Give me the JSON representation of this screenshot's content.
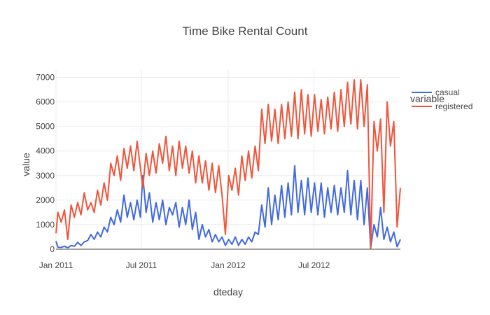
{
  "chart_data": {
    "type": "line",
    "title": "Time Bike Rental Count",
    "xlabel": "dteday",
    "ylabel": "value",
    "xlim": [
      "2011-01-01",
      "2012-12-31"
    ],
    "ylim": [
      0,
      7300
    ],
    "x_ticks": [
      {
        "date": "2011-01-01",
        "label": "Jan 2011"
      },
      {
        "date": "2011-07-01",
        "label": "Jul 2011"
      },
      {
        "date": "2012-01-01",
        "label": "Jan 2012"
      },
      {
        "date": "2012-07-01",
        "label": "Jul 2012"
      }
    ],
    "y_ticks": [
      {
        "value": 0,
        "label": "0"
      },
      {
        "value": 1000,
        "label": "1000"
      },
      {
        "value": 2000,
        "label": "2000"
      },
      {
        "value": 3000,
        "label": "3000"
      },
      {
        "value": 4000,
        "label": "4000"
      },
      {
        "value": 5000,
        "label": "5000"
      },
      {
        "value": 6000,
        "label": "6000"
      },
      {
        "value": 7000,
        "label": "7000"
      }
    ],
    "grid": true,
    "legend": {
      "title": "variable",
      "position": "top-right"
    },
    "series": [
      {
        "name": "casual",
        "color": "#4169e1",
        "points": [
          {
            "x": "2011-01-01",
            "y": 330
          },
          {
            "x": "2011-01-05",
            "y": 80
          },
          {
            "x": "2011-01-12",
            "y": 70
          },
          {
            "x": "2011-01-19",
            "y": 120
          },
          {
            "x": "2011-01-26",
            "y": 60
          },
          {
            "x": "2011-02-02",
            "y": 150
          },
          {
            "x": "2011-02-09",
            "y": 120
          },
          {
            "x": "2011-02-16",
            "y": 280
          },
          {
            "x": "2011-02-23",
            "y": 150
          },
          {
            "x": "2011-03-02",
            "y": 300
          },
          {
            "x": "2011-03-09",
            "y": 350
          },
          {
            "x": "2011-03-16",
            "y": 600
          },
          {
            "x": "2011-03-23",
            "y": 400
          },
          {
            "x": "2011-03-30",
            "y": 700
          },
          {
            "x": "2011-04-06",
            "y": 500
          },
          {
            "x": "2011-04-13",
            "y": 900
          },
          {
            "x": "2011-04-20",
            "y": 700
          },
          {
            "x": "2011-04-27",
            "y": 1300
          },
          {
            "x": "2011-05-04",
            "y": 1000
          },
          {
            "x": "2011-05-11",
            "y": 1600
          },
          {
            "x": "2011-05-18",
            "y": 1100
          },
          {
            "x": "2011-05-25",
            "y": 2200
          },
          {
            "x": "2011-06-01",
            "y": 1300
          },
          {
            "x": "2011-06-08",
            "y": 1900
          },
          {
            "x": "2011-06-15",
            "y": 1200
          },
          {
            "x": "2011-06-22",
            "y": 2000
          },
          {
            "x": "2011-06-29",
            "y": 1300
          },
          {
            "x": "2011-07-04",
            "y": 3000
          },
          {
            "x": "2011-07-11",
            "y": 1500
          },
          {
            "x": "2011-07-18",
            "y": 2300
          },
          {
            "x": "2011-07-25",
            "y": 1100
          },
          {
            "x": "2011-08-01",
            "y": 1900
          },
          {
            "x": "2011-08-08",
            "y": 1200
          },
          {
            "x": "2011-08-15",
            "y": 2000
          },
          {
            "x": "2011-08-22",
            "y": 1000
          },
          {
            "x": "2011-08-29",
            "y": 1700
          },
          {
            "x": "2011-09-05",
            "y": 1400
          },
          {
            "x": "2011-09-12",
            "y": 1900
          },
          {
            "x": "2011-09-19",
            "y": 900
          },
          {
            "x": "2011-09-26",
            "y": 1700
          },
          {
            "x": "2011-10-03",
            "y": 1000
          },
          {
            "x": "2011-10-10",
            "y": 2000
          },
          {
            "x": "2011-10-17",
            "y": 800
          },
          {
            "x": "2011-10-24",
            "y": 1500
          },
          {
            "x": "2011-10-31",
            "y": 400
          },
          {
            "x": "2011-11-07",
            "y": 1000
          },
          {
            "x": "2011-11-14",
            "y": 500
          },
          {
            "x": "2011-11-21",
            "y": 800
          },
          {
            "x": "2011-11-28",
            "y": 300
          },
          {
            "x": "2011-12-05",
            "y": 600
          },
          {
            "x": "2011-12-12",
            "y": 300
          },
          {
            "x": "2011-12-19",
            "y": 500
          },
          {
            "x": "2011-12-26",
            "y": 150
          },
          {
            "x": "2012-01-02",
            "y": 400
          },
          {
            "x": "2012-01-09",
            "y": 200
          },
          {
            "x": "2012-01-16",
            "y": 500
          },
          {
            "x": "2012-01-23",
            "y": 150
          },
          {
            "x": "2012-01-30",
            "y": 400
          },
          {
            "x": "2012-02-06",
            "y": 200
          },
          {
            "x": "2012-02-13",
            "y": 500
          },
          {
            "x": "2012-02-20",
            "y": 300
          },
          {
            "x": "2012-02-27",
            "y": 700
          },
          {
            "x": "2012-03-05",
            "y": 600
          },
          {
            "x": "2012-03-12",
            "y": 1800
          },
          {
            "x": "2012-03-19",
            "y": 900
          },
          {
            "x": "2012-03-26",
            "y": 2500
          },
          {
            "x": "2012-04-02",
            "y": 1000
          },
          {
            "x": "2012-04-09",
            "y": 2200
          },
          {
            "x": "2012-04-16",
            "y": 1200
          },
          {
            "x": "2012-04-23",
            "y": 2600
          },
          {
            "x": "2012-04-30",
            "y": 1300
          },
          {
            "x": "2012-05-07",
            "y": 2700
          },
          {
            "x": "2012-05-14",
            "y": 1400
          },
          {
            "x": "2012-05-21",
            "y": 3400
          },
          {
            "x": "2012-05-28",
            "y": 1500
          },
          {
            "x": "2012-06-04",
            "y": 2800
          },
          {
            "x": "2012-06-11",
            "y": 1400
          },
          {
            "x": "2012-06-18",
            "y": 2900
          },
          {
            "x": "2012-06-25",
            "y": 1500
          },
          {
            "x": "2012-07-02",
            "y": 2700
          },
          {
            "x": "2012-07-09",
            "y": 1400
          },
          {
            "x": "2012-07-16",
            "y": 2700
          },
          {
            "x": "2012-07-23",
            "y": 1300
          },
          {
            "x": "2012-07-30",
            "y": 2500
          },
          {
            "x": "2012-08-06",
            "y": 1500
          },
          {
            "x": "2012-08-13",
            "y": 2600
          },
          {
            "x": "2012-08-20",
            "y": 1400
          },
          {
            "x": "2012-08-27",
            "y": 2500
          },
          {
            "x": "2012-09-03",
            "y": 1500
          },
          {
            "x": "2012-09-10",
            "y": 3200
          },
          {
            "x": "2012-09-17",
            "y": 1400
          },
          {
            "x": "2012-09-24",
            "y": 2800
          },
          {
            "x": "2012-10-01",
            "y": 1200
          },
          {
            "x": "2012-10-08",
            "y": 2800
          },
          {
            "x": "2012-10-15",
            "y": 1000
          },
          {
            "x": "2012-10-22",
            "y": 2500
          },
          {
            "x": "2012-10-29",
            "y": 30
          },
          {
            "x": "2012-11-05",
            "y": 1000
          },
          {
            "x": "2012-11-12",
            "y": 500
          },
          {
            "x": "2012-11-19",
            "y": 1700
          },
          {
            "x": "2012-11-26",
            "y": 400
          },
          {
            "x": "2012-12-03",
            "y": 900
          },
          {
            "x": "2012-12-10",
            "y": 300
          },
          {
            "x": "2012-12-17",
            "y": 700
          },
          {
            "x": "2012-12-24",
            "y": 100
          },
          {
            "x": "2012-12-31",
            "y": 400
          }
        ]
      },
      {
        "name": "registered",
        "color": "#ef553b",
        "points": [
          {
            "x": "2011-01-01",
            "y": 650
          },
          {
            "x": "2011-01-05",
            "y": 1500
          },
          {
            "x": "2011-01-12",
            "y": 1100
          },
          {
            "x": "2011-01-19",
            "y": 1600
          },
          {
            "x": "2011-01-26",
            "y": 400
          },
          {
            "x": "2011-02-02",
            "y": 1800
          },
          {
            "x": "2011-02-09",
            "y": 1300
          },
          {
            "x": "2011-02-16",
            "y": 1900
          },
          {
            "x": "2011-02-23",
            "y": 1400
          },
          {
            "x": "2011-03-02",
            "y": 2300
          },
          {
            "x": "2011-03-09",
            "y": 1600
          },
          {
            "x": "2011-03-16",
            "y": 1900
          },
          {
            "x": "2011-03-23",
            "y": 1500
          },
          {
            "x": "2011-03-30",
            "y": 2400
          },
          {
            "x": "2011-04-06",
            "y": 1800
          },
          {
            "x": "2011-04-13",
            "y": 2700
          },
          {
            "x": "2011-04-20",
            "y": 2000
          },
          {
            "x": "2011-04-27",
            "y": 3500
          },
          {
            "x": "2011-05-04",
            "y": 3000
          },
          {
            "x": "2011-05-11",
            "y": 3800
          },
          {
            "x": "2011-05-18",
            "y": 2800
          },
          {
            "x": "2011-05-25",
            "y": 4100
          },
          {
            "x": "2011-06-01",
            "y": 3300
          },
          {
            "x": "2011-06-08",
            "y": 4200
          },
          {
            "x": "2011-06-15",
            "y": 3200
          },
          {
            "x": "2011-06-22",
            "y": 4400
          },
          {
            "x": "2011-06-29",
            "y": 3300
          },
          {
            "x": "2011-07-04",
            "y": 2500
          },
          {
            "x": "2011-07-11",
            "y": 3900
          },
          {
            "x": "2011-07-18",
            "y": 3000
          },
          {
            "x": "2011-07-25",
            "y": 4000
          },
          {
            "x": "2011-08-01",
            "y": 3100
          },
          {
            "x": "2011-08-08",
            "y": 4300
          },
          {
            "x": "2011-08-15",
            "y": 3500
          },
          {
            "x": "2011-08-22",
            "y": 4600
          },
          {
            "x": "2011-08-29",
            "y": 3200
          },
          {
            "x": "2011-09-05",
            "y": 4200
          },
          {
            "x": "2011-09-12",
            "y": 3000
          },
          {
            "x": "2011-09-19",
            "y": 4400
          },
          {
            "x": "2011-09-26",
            "y": 3300
          },
          {
            "x": "2011-10-03",
            "y": 4200
          },
          {
            "x": "2011-10-10",
            "y": 3100
          },
          {
            "x": "2011-10-17",
            "y": 4000
          },
          {
            "x": "2011-10-24",
            "y": 2700
          },
          {
            "x": "2011-10-31",
            "y": 3800
          },
          {
            "x": "2011-11-07",
            "y": 2700
          },
          {
            "x": "2011-11-14",
            "y": 3600
          },
          {
            "x": "2011-11-21",
            "y": 2400
          },
          {
            "x": "2011-11-28",
            "y": 3500
          },
          {
            "x": "2011-12-05",
            "y": 2300
          },
          {
            "x": "2011-12-12",
            "y": 3400
          },
          {
            "x": "2011-12-19",
            "y": 2200
          },
          {
            "x": "2011-12-26",
            "y": 600
          },
          {
            "x": "2012-01-02",
            "y": 3000
          },
          {
            "x": "2012-01-09",
            "y": 2400
          },
          {
            "x": "2012-01-16",
            "y": 3300
          },
          {
            "x": "2012-01-23",
            "y": 2200
          },
          {
            "x": "2012-01-30",
            "y": 3800
          },
          {
            "x": "2012-02-06",
            "y": 2800
          },
          {
            "x": "2012-02-13",
            "y": 4000
          },
          {
            "x": "2012-02-20",
            "y": 2900
          },
          {
            "x": "2012-02-27",
            "y": 4200
          },
          {
            "x": "2012-03-05",
            "y": 3200
          },
          {
            "x": "2012-03-12",
            "y": 5700
          },
          {
            "x": "2012-03-19",
            "y": 4300
          },
          {
            "x": "2012-03-26",
            "y": 5900
          },
          {
            "x": "2012-04-02",
            "y": 4400
          },
          {
            "x": "2012-04-09",
            "y": 5700
          },
          {
            "x": "2012-04-16",
            "y": 4300
          },
          {
            "x": "2012-04-23",
            "y": 5900
          },
          {
            "x": "2012-04-30",
            "y": 4500
          },
          {
            "x": "2012-05-07",
            "y": 6000
          },
          {
            "x": "2012-05-14",
            "y": 4600
          },
          {
            "x": "2012-05-21",
            "y": 6400
          },
          {
            "x": "2012-05-28",
            "y": 4500
          },
          {
            "x": "2012-06-04",
            "y": 6500
          },
          {
            "x": "2012-06-11",
            "y": 4700
          },
          {
            "x": "2012-06-18",
            "y": 6300
          },
          {
            "x": "2012-06-25",
            "y": 4600
          },
          {
            "x": "2012-07-02",
            "y": 6300
          },
          {
            "x": "2012-07-09",
            "y": 4800
          },
          {
            "x": "2012-07-16",
            "y": 6100
          },
          {
            "x": "2012-07-23",
            "y": 4700
          },
          {
            "x": "2012-07-30",
            "y": 6200
          },
          {
            "x": "2012-08-06",
            "y": 4900
          },
          {
            "x": "2012-08-13",
            "y": 6400
          },
          {
            "x": "2012-08-20",
            "y": 4800
          },
          {
            "x": "2012-08-27",
            "y": 6500
          },
          {
            "x": "2012-09-03",
            "y": 5000
          },
          {
            "x": "2012-09-10",
            "y": 6800
          },
          {
            "x": "2012-09-17",
            "y": 5100
          },
          {
            "x": "2012-09-24",
            "y": 6900
          },
          {
            "x": "2012-10-01",
            "y": 4900
          },
          {
            "x": "2012-10-08",
            "y": 6900
          },
          {
            "x": "2012-10-15",
            "y": 5000
          },
          {
            "x": "2012-10-22",
            "y": 6700
          },
          {
            "x": "2012-10-29",
            "y": 20
          },
          {
            "x": "2012-11-05",
            "y": 5200
          },
          {
            "x": "2012-11-12",
            "y": 4000
          },
          {
            "x": "2012-11-19",
            "y": 5300
          },
          {
            "x": "2012-11-26",
            "y": 1500
          },
          {
            "x": "2012-12-03",
            "y": 6000
          },
          {
            "x": "2012-12-10",
            "y": 4200
          },
          {
            "x": "2012-12-17",
            "y": 5200
          },
          {
            "x": "2012-12-24",
            "y": 900
          },
          {
            "x": "2012-12-31",
            "y": 2500
          }
        ]
      }
    ]
  }
}
